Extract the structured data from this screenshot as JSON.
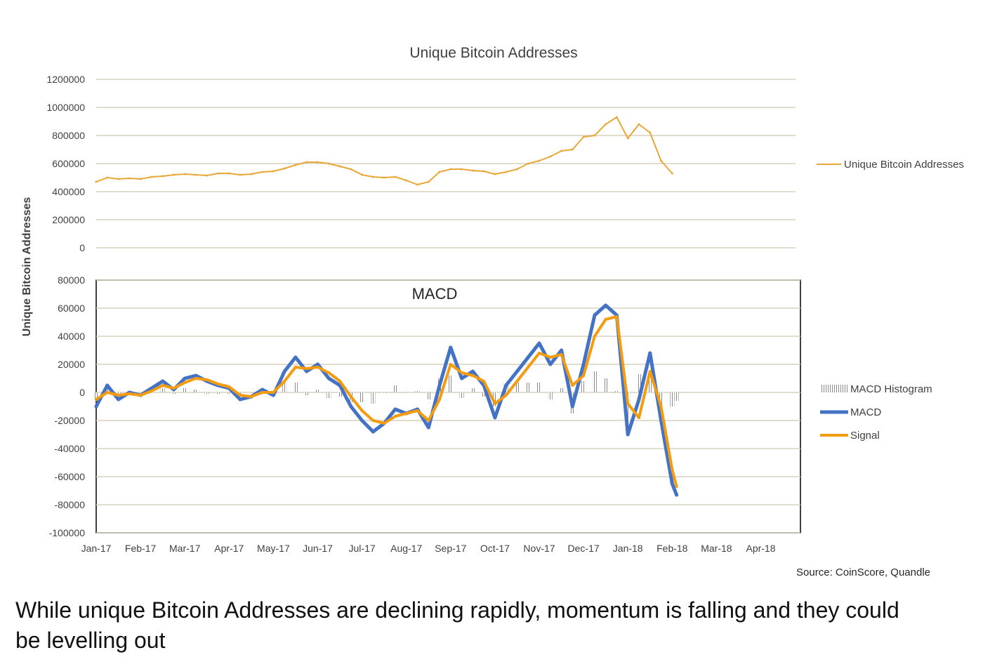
{
  "chart_data": [
    {
      "type": "line",
      "title": "Unique Bitcoin Addresses",
      "ylabel": "Unique Bitcoin Addresses",
      "ylim": [
        0,
        1200000
      ],
      "yticks": [
        0,
        200000,
        400000,
        600000,
        800000,
        1000000,
        1200000
      ],
      "grid": true,
      "legend_position": "right",
      "series": [
        {
          "name": "Unique Bitcoin Addresses",
          "color": "#e8a838",
          "x_month_index": [
            0,
            0.25,
            0.5,
            0.75,
            1,
            1.25,
            1.5,
            1.75,
            2,
            2.25,
            2.5,
            2.75,
            3,
            3.25,
            3.5,
            3.75,
            4,
            4.25,
            4.5,
            4.75,
            5,
            5.25,
            5.5,
            5.75,
            6,
            6.25,
            6.5,
            6.75,
            7,
            7.25,
            7.5,
            7.75,
            8,
            8.25,
            8.5,
            8.75,
            9,
            9.25,
            9.5,
            9.75,
            10,
            10.25,
            10.5,
            10.75,
            11,
            11.25,
            11.5,
            11.75,
            12,
            12.25,
            12.5,
            12.75,
            13
          ],
          "values": [
            470000,
            500000,
            490000,
            495000,
            490000,
            505000,
            510000,
            520000,
            525000,
            520000,
            515000,
            530000,
            530000,
            520000,
            525000,
            540000,
            545000,
            565000,
            590000,
            610000,
            610000,
            600000,
            580000,
            560000,
            520000,
            505000,
            500000,
            505000,
            480000,
            450000,
            470000,
            540000,
            560000,
            560000,
            550000,
            545000,
            525000,
            540000,
            560000,
            600000,
            620000,
            650000,
            690000,
            700000,
            790000,
            800000,
            880000,
            930000,
            780000,
            880000,
            820000,
            620000,
            530000
          ]
        }
      ]
    },
    {
      "type": "line",
      "title": "MACD",
      "ylim": [
        -100000,
        80000
      ],
      "yticks": [
        -100000,
        -80000,
        -60000,
        -40000,
        -20000,
        0,
        20000,
        40000,
        60000,
        80000
      ],
      "xticks": [
        "Jan-17",
        "Feb-17",
        "Mar-17",
        "Apr-17",
        "May-17",
        "Jun-17",
        "Jul-17",
        "Aug-17",
        "Sep-17",
        "Oct-17",
        "Nov-17",
        "Dec-17",
        "Jan-18",
        "Feb-18",
        "Mar-18",
        "Apr-18"
      ],
      "grid": true,
      "legend_position": "right",
      "x_month_index": [
        0,
        0.25,
        0.5,
        0.75,
        1,
        1.25,
        1.5,
        1.75,
        2,
        2.25,
        2.5,
        2.75,
        3,
        3.25,
        3.5,
        3.75,
        4,
        4.25,
        4.5,
        4.75,
        5,
        5.25,
        5.5,
        5.75,
        6,
        6.25,
        6.5,
        6.75,
        7,
        7.25,
        7.5,
        7.75,
        8,
        8.25,
        8.5,
        8.75,
        9,
        9.25,
        9.5,
        9.75,
        10,
        10.25,
        10.5,
        10.75,
        11,
        11.25,
        11.5,
        11.75,
        12,
        12.25,
        12.5,
        12.75,
        13,
        13.1
      ],
      "series": [
        {
          "name": "MACD",
          "color": "#4472c4",
          "values": [
            -10000,
            5000,
            -5000,
            0,
            -2000,
            3000,
            8000,
            2000,
            10000,
            12000,
            8000,
            5000,
            3000,
            -5000,
            -3000,
            2000,
            -2000,
            15000,
            25000,
            15000,
            20000,
            10000,
            5000,
            -10000,
            -20000,
            -28000,
            -22000,
            -12000,
            -15000,
            -12000,
            -25000,
            5000,
            32000,
            10000,
            15000,
            5000,
            -18000,
            5000,
            15000,
            25000,
            35000,
            20000,
            30000,
            -10000,
            20000,
            55000,
            62000,
            55000,
            -30000,
            -5000,
            28000,
            -20000,
            -65000,
            -73000
          ]
        },
        {
          "name": "Signal",
          "color": "#f39c12",
          "values": [
            -5000,
            0,
            -2000,
            -1000,
            -2000,
            1000,
            5000,
            3000,
            7000,
            10000,
            9000,
            6000,
            4000,
            -2000,
            -3000,
            0,
            0,
            8000,
            18000,
            17000,
            18000,
            14000,
            8000,
            -3000,
            -13000,
            -20000,
            -22000,
            -17000,
            -15000,
            -13000,
            -20000,
            -5000,
            20000,
            14000,
            12000,
            8000,
            -8000,
            -2000,
            8000,
            18000,
            28000,
            25000,
            27000,
            5000,
            12000,
            40000,
            52000,
            54000,
            -8000,
            -18000,
            15000,
            -10000,
            -55000,
            -67000
          ]
        },
        {
          "name": "MACD Histogram",
          "color": "#9e9e9e",
          "values": [
            -5000,
            5000,
            -3000,
            1000,
            0,
            2000,
            3000,
            -1000,
            3000,
            2000,
            -1000,
            -1000,
            -1000,
            -3000,
            0,
            2000,
            -2000,
            7000,
            7000,
            -2000,
            2000,
            -4000,
            -3000,
            -7000,
            -7000,
            -8000,
            0,
            5000,
            0,
            1000,
            -5000,
            10000,
            12000,
            -4000,
            3000,
            -3000,
            -10000,
            7000,
            7000,
            7000,
            7000,
            -5000,
            3000,
            -15000,
            8000,
            15000,
            10000,
            1000,
            -22000,
            13000,
            13000,
            -10000,
            -10000,
            -6000
          ]
        }
      ]
    }
  ],
  "source": "Source:  CoinScore, Quandle",
  "caption": "While unique Bitcoin Addresses are declining rapidly, momentum is falling and they could be levelling out"
}
